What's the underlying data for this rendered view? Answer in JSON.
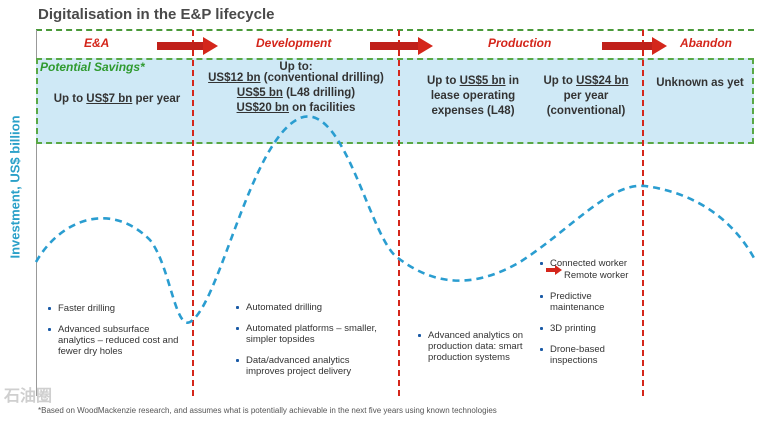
{
  "title": "Digitalisation  in the E&P lifecycle",
  "y_axis_label": "Investment, US$ billion",
  "phases": [
    "E&A",
    "Development",
    "Production",
    "Abandon"
  ],
  "savings_title": "Potential Savings*",
  "savings": {
    "ea": {
      "pre": "Up to ",
      "amount": "US$7 bn",
      "post": " per year"
    },
    "dev_head": "Up to:",
    "dev_lines": [
      {
        "amount": "US$12 bn",
        "post": " (conventional drilling)"
      },
      {
        "amount": "US$5 bn",
        "post": " (L48 drilling)"
      },
      {
        "amount": "US$20 bn",
        "post": " on facilities"
      }
    ],
    "prod1": {
      "pre": "Up to ",
      "amount": "US$5 bn",
      "post": " in lease operating expenses (L48)"
    },
    "prod2": {
      "pre": "Up to ",
      "amount": "US$24 bn",
      "post": " per year (conventional)"
    },
    "abandon": "Unknown as yet"
  },
  "bullets": {
    "ea": [
      "Faster drilling",
      "Advanced subsurface analytics – reduced cost and fewer dry holes"
    ],
    "dev": [
      "Automated drilling",
      "Automated platforms – smaller, simpler topsides",
      "Data/advanced analytics improves project delivery"
    ],
    "prod1": [
      "Advanced analytics on production data: smart production systems"
    ],
    "prod2_first": "Connected worker",
    "prod2_arrow": "Remote worker",
    "prod2_rest": [
      "Predictive maintenance",
      "3D printing",
      "Drone-based inspections"
    ]
  },
  "footnote": "*Based on WoodMackenzie research, and assumes what is potentially achievable in the next five years using known technologies",
  "watermark": "石油圈",
  "colors": {
    "red": "#d4261b",
    "blue_curve": "#2a9dd0",
    "green": "#2f9a2f",
    "band": "#cfe9f6"
  }
}
